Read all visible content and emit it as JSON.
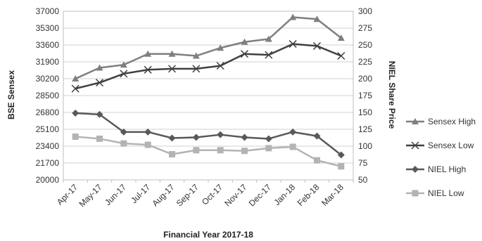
{
  "chart_data": {
    "type": "line",
    "title": "",
    "xlabel": "Financial Year 2017-18",
    "ylabel": "BSE Sensex",
    "y2label": "NIEL Share Price",
    "categories": [
      "Apr-17",
      "May-17",
      "Jun-17",
      "Jul-17",
      "Aug-17",
      "Sep-17",
      "Oct-17",
      "Nov-17",
      "Dec-17",
      "Jan-18",
      "Feb-18",
      "Mar-18"
    ],
    "ylim": [
      20000,
      37000
    ],
    "yticks": [
      20000,
      21700,
      23400,
      25100,
      26800,
      28500,
      30200,
      31900,
      33600,
      35300,
      37000
    ],
    "y2lim": [
      50,
      300
    ],
    "y2ticks": [
      50,
      75,
      100,
      125,
      150,
      175,
      200,
      225,
      250,
      275,
      300
    ],
    "grid": "horizontal",
    "legend": "right",
    "series": [
      {
        "name": "Sensex High",
        "axis": "left",
        "marker": "triangle",
        "color": "#7f7f7f",
        "values": [
          30200,
          31300,
          31600,
          32700,
          32700,
          32500,
          33300,
          33900,
          34200,
          36400,
          36200,
          34300
        ]
      },
      {
        "name": "Sensex Low",
        "axis": "left",
        "marker": "x",
        "color": "#404040",
        "values": [
          29200,
          29800,
          30700,
          31100,
          31200,
          31200,
          31500,
          32700,
          32600,
          33700,
          33500,
          32500
        ]
      },
      {
        "name": "NIEL High",
        "axis": "right",
        "marker": "diamond",
        "color": "#595959",
        "values": [
          149,
          147,
          121,
          121,
          112,
          113,
          117,
          113,
          111,
          121,
          115,
          87
        ]
      },
      {
        "name": "NIEL Low",
        "axis": "right",
        "marker": "square",
        "color": "#b3b3b3",
        "values": [
          114,
          111,
          104,
          102,
          88,
          94,
          94,
          93,
          97,
          99,
          79,
          70
        ]
      }
    ]
  }
}
